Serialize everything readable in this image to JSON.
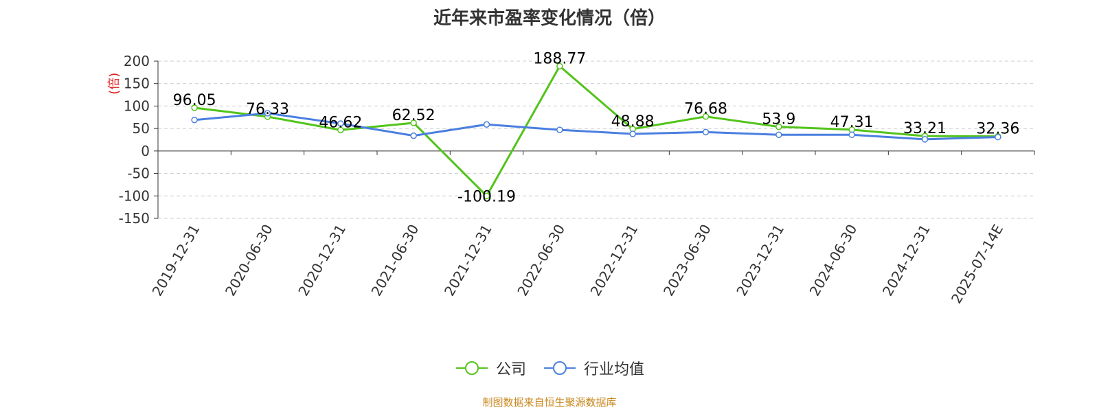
{
  "chart_data": {
    "type": "line",
    "title": "近年来市盈率变化情况（倍）",
    "ylabel": "(倍)",
    "xlabel": "",
    "ylim": [
      -150,
      200
    ],
    "yticks": [
      200,
      150,
      100,
      50,
      0,
      -50,
      -100,
      -150
    ],
    "categories": [
      "2019-12-31",
      "2020-06-30",
      "2020-12-31",
      "2021-06-30",
      "2021-12-31",
      "2022-06-30",
      "2022-12-31",
      "2023-06-30",
      "2023-12-31",
      "2024-06-30",
      "2024-12-31",
      "2025-07-14E"
    ],
    "grid": true,
    "legend_position": "bottom-center",
    "series": [
      {
        "name": "公司",
        "color": "#52c41a",
        "labels": true,
        "values": [
          96.05,
          76.33,
          46.62,
          62.52,
          -100.19,
          188.77,
          48.88,
          76.68,
          53.9,
          47.31,
          33.21,
          32.36
        ]
      },
      {
        "name": "行业均值",
        "color": "#4a7fe0",
        "labels": false,
        "values": [
          69,
          84,
          61,
          34,
          59,
          47,
          38,
          42,
          36,
          36,
          26,
          31
        ]
      }
    ]
  },
  "source_note": "制图数据来自恒生聚源数据库"
}
